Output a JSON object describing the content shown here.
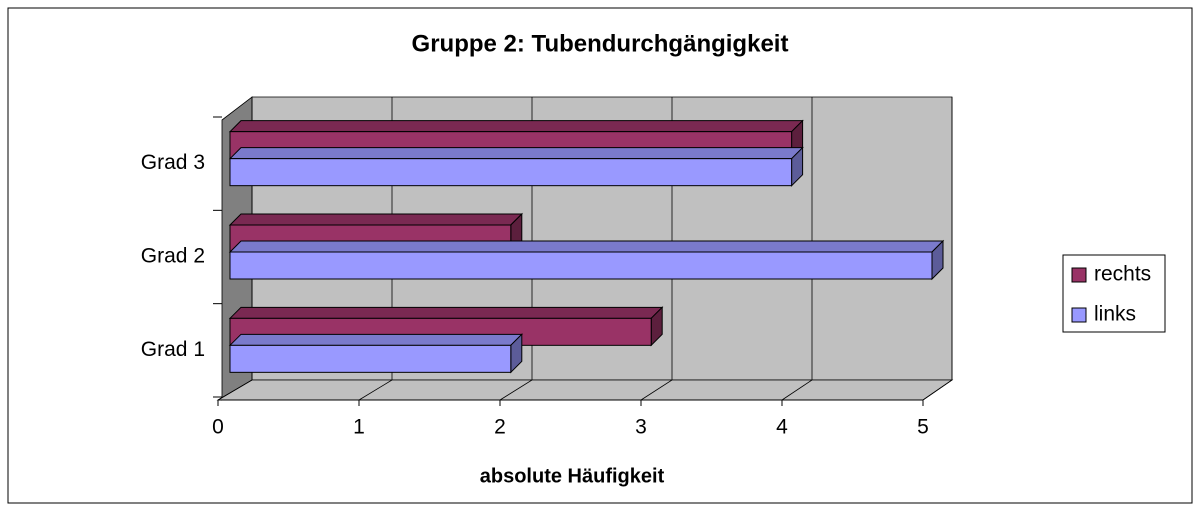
{
  "chart_data": {
    "type": "bar3d",
    "orientation": "horizontal",
    "title": "Gruppe 2: Tubendurchgängigkeit",
    "xlabel": "absolute Häufigkeit",
    "categories": [
      "Grad 1",
      "Grad 2",
      "Grad 3"
    ],
    "series": [
      {
        "name": "rechts",
        "color": "#993366",
        "values": [
          3,
          2,
          4
        ]
      },
      {
        "name": "links",
        "color": "#9999ff",
        "values": [
          2,
          5,
          4
        ]
      }
    ],
    "xlim": [
      0,
      5
    ],
    "xticks": [
      0,
      1,
      2,
      3,
      4,
      5
    ],
    "grid": true,
    "legend": "right"
  }
}
